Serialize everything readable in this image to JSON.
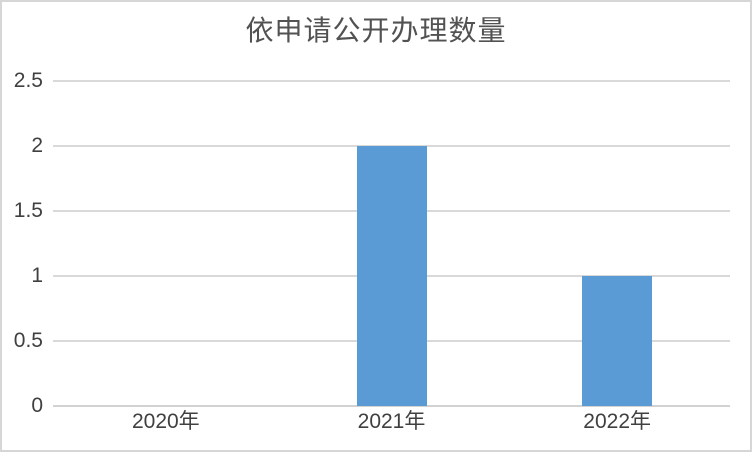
{
  "chart_data": {
    "type": "bar",
    "title": "依申请公开办理数量",
    "categories": [
      "2020年",
      "2021年",
      "2022年"
    ],
    "values": [
      0,
      2,
      1
    ],
    "series": [
      {
        "name": "依申请公开办理数量",
        "values": [
          0,
          2,
          1
        ]
      }
    ],
    "xlabel": "",
    "ylabel": "",
    "ylim": [
      0,
      2.5
    ],
    "ytick_step": 0.5,
    "ytick_labels": [
      "0",
      "0.5",
      "1",
      "1.5",
      "2",
      "2.5"
    ],
    "grid": "horizontal",
    "legend_position": "none",
    "colors": {
      "bar": "#5b9bd5",
      "gridline": "#d9d9d9",
      "axis_line": "#d2d2d2",
      "tick_text": "#404040",
      "title_text": "#525252",
      "border": "#d6d6d6",
      "background": "#ffffff"
    }
  }
}
